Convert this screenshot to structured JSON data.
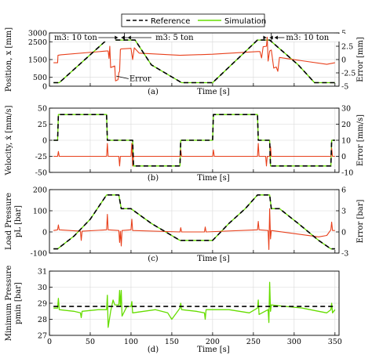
{
  "legend": {
    "reference": "Reference",
    "simulation": "Simulation"
  },
  "colors": {
    "reference": "#000000",
    "simulation": "#66dd00",
    "error": "#e8401c"
  },
  "chart_data": [
    {
      "type": "line",
      "panel_label": "(a)",
      "xlabel": "Time [s]",
      "ylabel": "Position, x [mm]",
      "y2label": "Error [mm]",
      "xlim": [
        0,
        355
      ],
      "ylim": [
        0,
        3000
      ],
      "y2lim": [
        -5,
        5
      ],
      "yticks": [
        0,
        500,
        1500,
        2500,
        3000
      ],
      "y2ticks": [
        -5,
        -2.5,
        0,
        2.5,
        5
      ],
      "annotations": {
        "m3_left": "m3: 10 ton",
        "m3_mid": "m3: 5 ton",
        "m3_right": "m3: 10 ton",
        "error": "Error"
      },
      "series": [
        {
          "name": "Reference",
          "axis": "left",
          "x": [
            5,
            12,
            70,
            105,
            125,
            162,
            200,
            255,
            270,
            305,
            325,
            350
          ],
          "y": [
            200,
            200,
            2600,
            2600,
            1200,
            200,
            200,
            2600,
            2600,
            1200,
            200,
            200
          ]
        },
        {
          "name": "Simulation",
          "axis": "left",
          "x": [
            5,
            12,
            70,
            105,
            125,
            162,
            200,
            255,
            270,
            305,
            325,
            350
          ],
          "y": [
            200,
            200,
            2600,
            2600,
            1200,
            200,
            200,
            2600,
            2600,
            1200,
            200,
            200
          ]
        },
        {
          "name": "Error",
          "axis": "right",
          "x": [
            5,
            10,
            10.5,
            14,
            70,
            72,
            73,
            74,
            75,
            80,
            81,
            84,
            85,
            86,
            87,
            88,
            100,
            102,
            104,
            110,
            160,
            200,
            255,
            258,
            260,
            262,
            266,
            267,
            268,
            270,
            272,
            275,
            278,
            280,
            282,
            290,
            340,
            350
          ],
          "y": [
            -0.6,
            -0.6,
            0.8,
            0.9,
            1.6,
            1.6,
            0.2,
            2.5,
            -1.5,
            -1.2,
            -4.0,
            -3.8,
            -2.5,
            -2.2,
            1.9,
            2.0,
            2.1,
            0.0,
            2.2,
            1.2,
            0.8,
            1.0,
            1.5,
            1.5,
            0.3,
            2.4,
            2.5,
            4.2,
            -0.3,
            1.6,
            1.8,
            -1.6,
            -1.4,
            -2.2,
            0.4,
            0.2,
            -0.9,
            -0.6
          ]
        }
      ]
    },
    {
      "type": "line",
      "panel_label": "(b)",
      "xlabel": "Time [s]",
      "ylabel": "Velocity, ẋ [mm/s]",
      "y2label": "Error [mm/s]",
      "xlim": [
        0,
        355
      ],
      "ylim": [
        -50,
        50
      ],
      "y2lim": [
        -10,
        30
      ],
      "yticks": [
        -50,
        -25,
        0,
        25,
        50
      ],
      "y2ticks": [
        -10,
        0,
        10,
        20,
        30
      ],
      "series": [
        {
          "name": "Reference",
          "axis": "left",
          "x": [
            5,
            10,
            11,
            70,
            71,
            88,
            89,
            102,
            103,
            160,
            161,
            200,
            201,
            255,
            256,
            270,
            271,
            288,
            289,
            345,
            346,
            350
          ],
          "y": [
            0,
            0,
            40,
            40,
            0,
            0,
            0,
            0,
            -40,
            -40,
            0,
            0,
            40,
            40,
            0,
            0,
            -40,
            -40,
            -40,
            -40,
            0,
            0
          ]
        },
        {
          "name": "Simulation",
          "axis": "left",
          "x": [
            5,
            10,
            11,
            70,
            71,
            88,
            89,
            102,
            103,
            160,
            161,
            200,
            201,
            255,
            256,
            270,
            271,
            288,
            289,
            345,
            346,
            350
          ],
          "y": [
            0,
            0,
            40,
            40,
            0,
            0,
            0,
            0,
            -40,
            -40,
            0,
            0,
            40,
            40,
            0,
            0,
            -40,
            -40,
            -40,
            -40,
            0,
            0
          ]
        },
        {
          "name": "Error",
          "axis": "right",
          "x": [
            5,
            10,
            11,
            12,
            70,
            71,
            72,
            85,
            86,
            87,
            100,
            101,
            102,
            103,
            160,
            161,
            162,
            200,
            201,
            202,
            255,
            256,
            257,
            265,
            266,
            267,
            270,
            271,
            272,
            345,
            346,
            347,
            350
          ],
          "y": [
            0,
            0,
            3,
            0,
            0,
            8,
            0,
            0,
            -6,
            0,
            0,
            8,
            -6,
            0,
            0,
            4,
            0,
            0,
            4,
            0,
            0,
            8,
            0,
            0,
            -6,
            0,
            0,
            6,
            0,
            0,
            5,
            0,
            0
          ]
        }
      ]
    },
    {
      "type": "line",
      "panel_label": "(c)",
      "xlabel": "Time [s]",
      "ylabel": "Load Pressure pL [bar]",
      "y2label": "Error [bar]",
      "xlim": [
        0,
        355
      ],
      "ylim": [
        -100,
        200
      ],
      "y2lim": [
        -3,
        6
      ],
      "yticks": [
        -100,
        0,
        100,
        200
      ],
      "y2ticks": [
        -3,
        0,
        3,
        6
      ],
      "series": [
        {
          "name": "Reference",
          "axis": "left",
          "x": [
            5,
            10,
            30,
            50,
            70,
            76,
            85,
            88,
            100,
            125,
            160,
            200,
            220,
            240,
            255,
            262,
            270,
            272,
            282,
            305,
            330,
            345,
            350
          ],
          "y": [
            -80,
            -80,
            -20,
            60,
            175,
            175,
            175,
            110,
            110,
            40,
            -40,
            -40,
            40,
            110,
            175,
            175,
            175,
            110,
            110,
            40,
            -40,
            -80,
            -80
          ]
        },
        {
          "name": "Simulation",
          "axis": "left",
          "x": [
            5,
            10,
            30,
            50,
            70,
            76,
            85,
            88,
            100,
            125,
            160,
            200,
            220,
            240,
            255,
            262,
            270,
            272,
            282,
            305,
            330,
            345,
            350
          ],
          "y": [
            -80,
            -80,
            -20,
            60,
            175,
            175,
            175,
            110,
            110,
            40,
            -40,
            -40,
            40,
            110,
            175,
            175,
            175,
            110,
            110,
            40,
            -40,
            -80,
            -80
          ]
        },
        {
          "name": "Error",
          "axis": "right",
          "x": [
            5,
            10,
            11,
            12,
            38,
            39,
            40,
            70,
            71,
            72,
            85,
            86,
            87,
            88,
            89,
            100,
            101,
            102,
            160,
            161,
            162,
            190,
            191,
            192,
            255,
            256,
            257,
            268,
            269,
            270,
            271,
            272,
            330,
            340,
            345,
            346,
            347,
            350
          ],
          "y": [
            0.2,
            0.3,
            1.0,
            0.3,
            0.1,
            -1.2,
            0.1,
            0.3,
            2.5,
            0.3,
            0.2,
            -1.5,
            0.1,
            -2.0,
            0.2,
            0.3,
            1.8,
            0.2,
            0.0,
            0.6,
            0.0,
            0.0,
            0.7,
            0.0,
            0.3,
            1.5,
            0.3,
            0.2,
            -2.5,
            3.3,
            -1.0,
            0.2,
            -0.7,
            -0.5,
            0.3,
            1.4,
            0.2,
            0.2
          ]
        }
      ]
    },
    {
      "type": "line",
      "panel_label": "(d)",
      "xlabel": "Time [s]",
      "ylabel": "Minimum Pressure pmin [bar]",
      "xlim": [
        0,
        355
      ],
      "ylim": [
        27,
        31
      ],
      "yticks": [
        27,
        28,
        29,
        30,
        31
      ],
      "xticks": [
        0,
        50,
        100,
        150,
        200,
        250,
        300,
        350
      ],
      "series": [
        {
          "name": "Reference",
          "axis": "left",
          "x": [
            5,
            350
          ],
          "y": [
            28.8,
            28.8
          ]
        },
        {
          "name": "Simulation",
          "axis": "left",
          "x": [
            5,
            10,
            11,
            12,
            30,
            38,
            39,
            40,
            60,
            70,
            71,
            72,
            75,
            78,
            80,
            85,
            86,
            87,
            88,
            89,
            95,
            100,
            101,
            102,
            130,
            145,
            150,
            160,
            161,
            162,
            180,
            190,
            191,
            192,
            220,
            245,
            255,
            256,
            257,
            268,
            269,
            270,
            271,
            272,
            290,
            310,
            330,
            340,
            345,
            346,
            347,
            350
          ],
          "y": [
            28.7,
            28.7,
            29.3,
            28.6,
            28.5,
            28.4,
            28.1,
            28.5,
            28.6,
            28.6,
            29.5,
            27.5,
            28.5,
            29.2,
            28.9,
            28.9,
            29.8,
            28.8,
            29.8,
            28.2,
            28.8,
            28.8,
            29.1,
            28.4,
            28.6,
            28.4,
            28.0,
            28.7,
            29.0,
            28.6,
            28.5,
            28.4,
            28.0,
            28.6,
            28.6,
            28.4,
            28.7,
            29.2,
            28.3,
            28.6,
            27.8,
            30.3,
            28.5,
            28.9,
            28.8,
            28.7,
            28.5,
            28.4,
            28.6,
            29.0,
            28.4,
            28.6
          ]
        }
      ]
    }
  ]
}
